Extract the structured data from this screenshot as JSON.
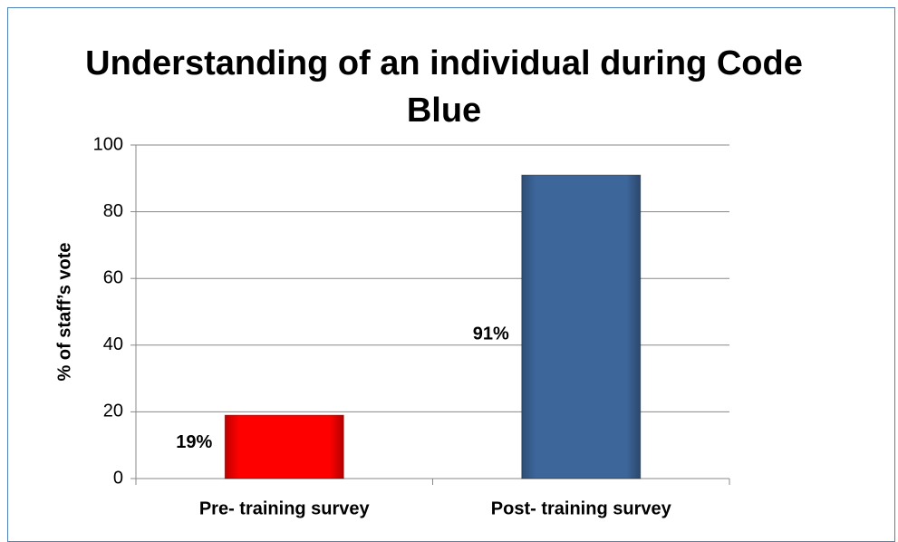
{
  "chart_data": {
    "type": "bar",
    "title": "Understanding of an individual during Code Blue",
    "y_label": "% of staff’s vote",
    "categories": [
      "Pre- training survey",
      "Post- training survey"
    ],
    "values": [
      19,
      91
    ],
    "value_labels": [
      "19%",
      "91%"
    ],
    "colors": [
      "#ff0000",
      "#3d679b"
    ],
    "ylim": [
      0,
      100
    ],
    "yticks": [
      0,
      20,
      40,
      60,
      80,
      100
    ],
    "grid": true
  }
}
